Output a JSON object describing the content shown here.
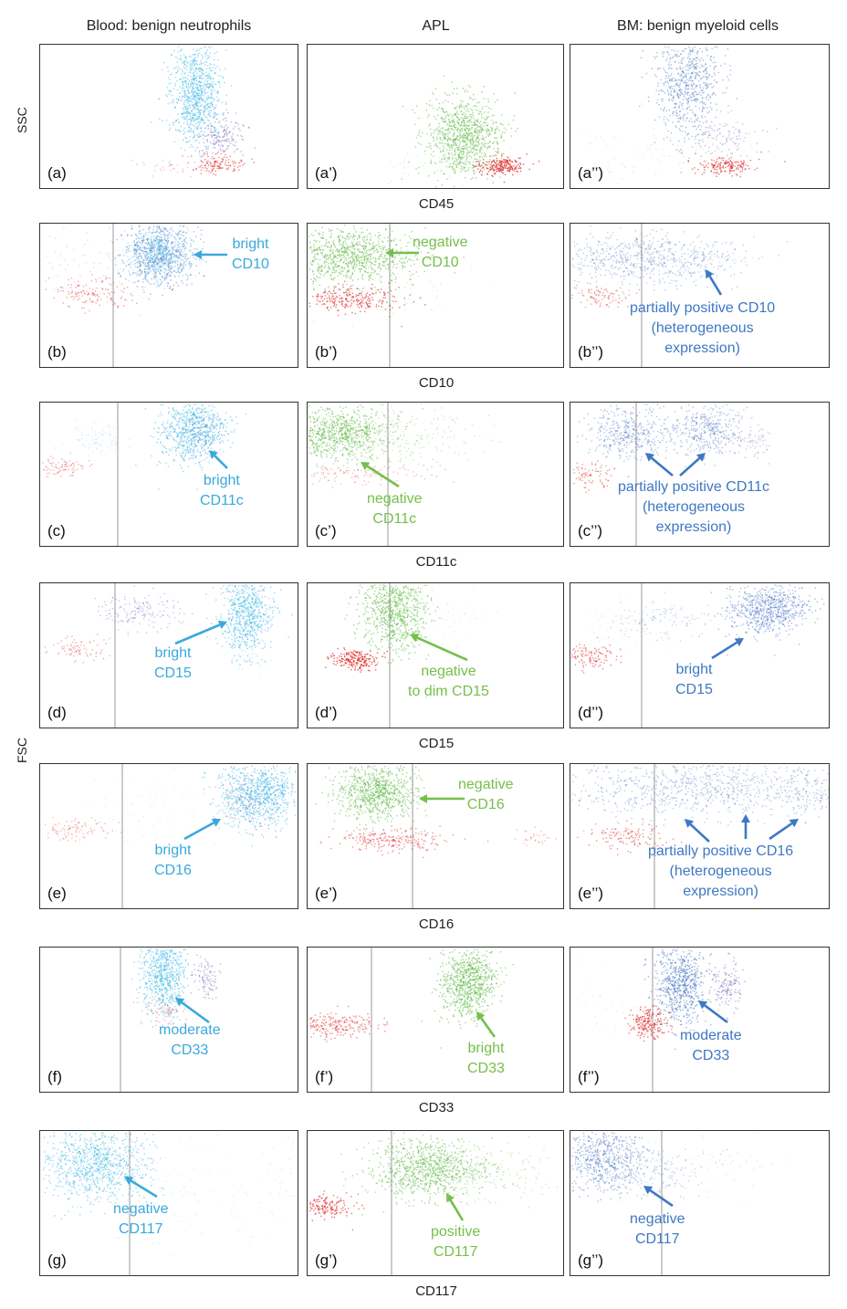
{
  "headers": {
    "col1": "Blood: benign neutrophils",
    "col2": "APL",
    "col3": "BM: benign myeloid cells"
  },
  "axes": {
    "ssc": "SSC",
    "fsc": "FSC"
  },
  "colors": {
    "benign_neutrophils": "#3ab6e6",
    "apl": "#5cb842",
    "bm_myeloid": "#3f6fc0",
    "lymphocytes": "#e02020",
    "monocytes": "#6a5bb0",
    "annot_neutrophils": "#3aa9dc",
    "annot_apl": "#76bf4a",
    "annot_bm": "#3e78c4"
  },
  "chart_data": {
    "type": "scatter",
    "rows": [
      {
        "marker": "CD45",
        "panels": [
          {
            "label": "(a)",
            "annotation": []
          },
          {
            "label": "(a’)",
            "annotation": []
          },
          {
            "label": "(a’’)",
            "annotation": []
          }
        ]
      },
      {
        "marker": "CD10",
        "panels": [
          {
            "label": "(b)",
            "annotation": [
              "bright",
              "CD10"
            ]
          },
          {
            "label": "(b’)",
            "annotation": [
              "negative",
              "CD10"
            ]
          },
          {
            "label": "(b’’)",
            "annotation": [
              "partially positive CD10",
              "(heterogeneous",
              "expression)"
            ]
          }
        ]
      },
      {
        "marker": "CD11c",
        "panels": [
          {
            "label": "(c)",
            "annotation": [
              "bright",
              "CD11c"
            ]
          },
          {
            "label": "(c’)",
            "annotation": [
              "negative",
              "CD11c"
            ]
          },
          {
            "label": "(c’’)",
            "annotation": [
              "partially positive CD11c",
              "(heterogeneous",
              "expression)"
            ]
          }
        ]
      },
      {
        "marker": "CD15",
        "panels": [
          {
            "label": "(d)",
            "annotation": [
              "bright",
              "CD15"
            ]
          },
          {
            "label": "(d’)",
            "annotation": [
              "negative",
              "to dim CD15"
            ]
          },
          {
            "label": "(d’’)",
            "annotation": [
              "bright",
              "CD15"
            ]
          }
        ]
      },
      {
        "marker": "CD16",
        "panels": [
          {
            "label": "(e)",
            "annotation": [
              "bright",
              "CD16"
            ]
          },
          {
            "label": "(e’)",
            "annotation": [
              "negative",
              "CD16"
            ]
          },
          {
            "label": "(e’’)",
            "annotation": [
              "partially positive CD16",
              "(heterogeneous",
              "expression)"
            ]
          }
        ]
      },
      {
        "marker": "CD33",
        "panels": [
          {
            "label": "(f)",
            "annotation": [
              "moderate",
              "CD33"
            ]
          },
          {
            "label": "(f’)",
            "annotation": [
              "bright",
              "CD33"
            ]
          },
          {
            "label": "(f’’)",
            "annotation": [
              "moderate",
              "CD33"
            ]
          }
        ]
      },
      {
        "marker": "CD117",
        "panels": [
          {
            "label": "(g)",
            "annotation": [
              "negative",
              "CD117"
            ]
          },
          {
            "label": "(g’)",
            "annotation": [
              "positive",
              "CD117"
            ]
          },
          {
            "label": "(g’’)",
            "annotation": [
              "negative",
              "CD117"
            ]
          }
        ]
      }
    ]
  }
}
